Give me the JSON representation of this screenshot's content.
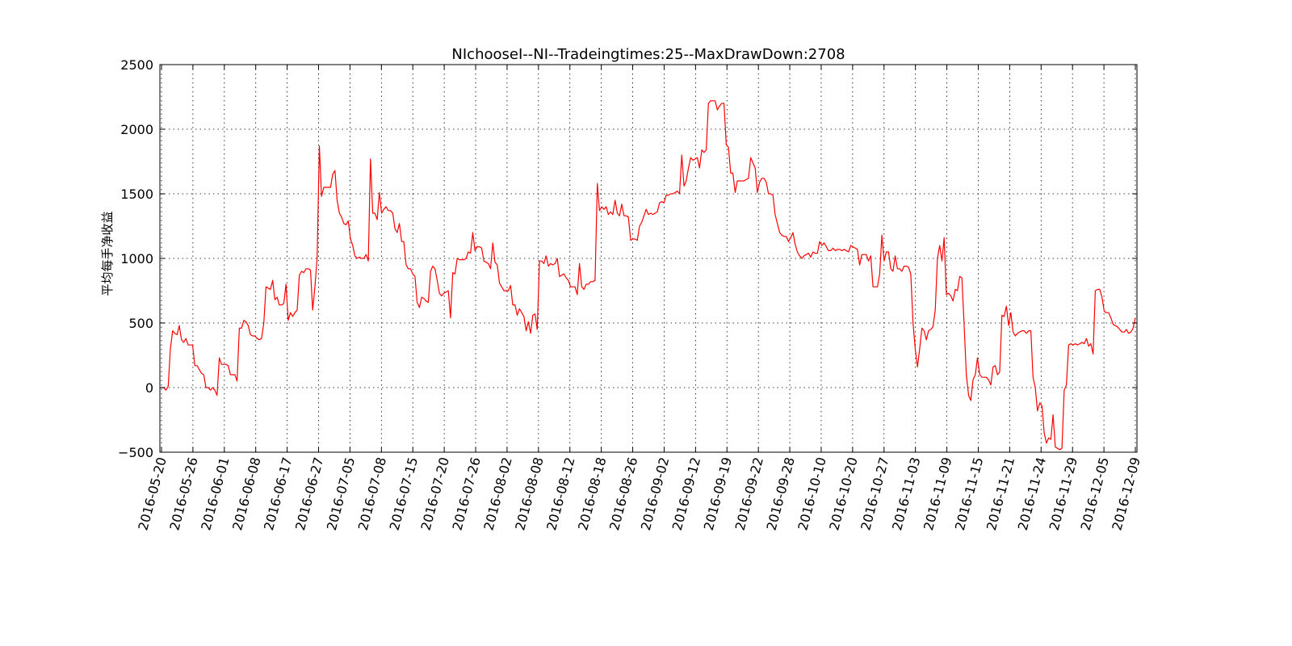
{
  "chart_data": {
    "type": "line",
    "title": "NIchooseI--NI--Tradeingtimes:25--MaxDrawDown:2708",
    "xlabel": "",
    "ylabel": "平均每手净收益",
    "ylim": [
      -500,
      2500
    ],
    "yticks": [
      -500,
      0,
      500,
      1000,
      1500,
      2000,
      2500
    ],
    "ytick_labels": [
      "−500",
      "0",
      "500",
      "1000",
      "1500",
      "2000",
      "2500"
    ],
    "xtick_labels": [
      "2016-05-20",
      "2016-05-26",
      "2016-06-01",
      "2016-06-08",
      "2016-06-17",
      "2016-06-27",
      "2016-07-05",
      "2016-07-08",
      "2016-07-15",
      "2016-07-20",
      "2016-07-26",
      "2016-08-02",
      "2016-08-08",
      "2016-08-12",
      "2016-08-18",
      "2016-08-26",
      "2016-09-02",
      "2016-09-12",
      "2016-09-19",
      "2016-09-22",
      "2016-09-28",
      "2016-10-10",
      "2016-10-20",
      "2016-10-27",
      "2016-11-03",
      "2016-11-09",
      "2016-11-15",
      "2016-11-21",
      "2016-11-24",
      "2016-11-29",
      "2016-12-05",
      "2016-12-09"
    ],
    "grid": true,
    "series": [
      {
        "color": "#ff0000",
        "y": [
          0,
          0,
          -20,
          10,
          300,
          440,
          420,
          410,
          480,
          370,
          350,
          380,
          330,
          330,
          330,
          170,
          170,
          140,
          110,
          100,
          0,
          0,
          -20,
          0,
          -20,
          -60,
          230,
          180,
          180,
          180,
          170,
          100,
          100,
          100,
          50,
          460,
          460,
          520,
          510,
          480,
          410,
          400,
          400,
          380,
          370,
          380,
          500,
          780,
          770,
          760,
          830,
          680,
          700,
          640,
          640,
          650,
          800,
          520,
          580,
          550,
          580,
          600,
          870,
          900,
          890,
          920,
          920,
          910,
          600,
          780,
          1000,
          1870,
          1480,
          1550,
          1550,
          1550,
          1550,
          1650,
          1680,
          1450,
          1350,
          1320,
          1270,
          1260,
          1290,
          1150,
          1100,
          1020,
          1000,
          1010,
          1000,
          1000,
          1030,
          980,
          1770,
          1350,
          1350,
          1300,
          1510,
          1350,
          1380,
          1400,
          1370,
          1370,
          1350,
          1230,
          1200,
          1270,
          1130,
          1130,
          950,
          920,
          920,
          880,
          860,
          660,
          620,
          700,
          690,
          670,
          660,
          900,
          940,
          920,
          830,
          730,
          710,
          730,
          740,
          750,
          540,
          890,
          880,
          1000,
          990,
          990,
          990,
          1000,
          1050,
          1040,
          1200,
          1060,
          1090,
          1090,
          1080,
          980,
          970,
          960,
          920,
          1120,
          970,
          950,
          810,
          780,
          750,
          750,
          750,
          790,
          640,
          640,
          560,
          610,
          580,
          550,
          440,
          510,
          420,
          560,
          570,
          450,
          980,
          980,
          960,
          1020,
          940,
          960,
          950,
          960,
          1000,
          860,
          870,
          880,
          850,
          830,
          780,
          780,
          780,
          720,
          960,
          780,
          760,
          800,
          800,
          820,
          820,
          830,
          1580,
          1370,
          1400,
          1380,
          1400,
          1340,
          1360,
          1340,
          1450,
          1350,
          1330,
          1420,
          1330,
          1330,
          1320,
          1140,
          1150,
          1150,
          1140,
          1250,
          1280,
          1330,
          1380,
          1340,
          1350,
          1340,
          1350,
          1360,
          1430,
          1440,
          1430,
          1490,
          1490,
          1500,
          1500,
          1510,
          1520,
          1500,
          1800,
          1560,
          1600,
          1700,
          1780,
          1760,
          1770,
          1780,
          1700,
          1840,
          1820,
          1840,
          2200,
          2220,
          2220,
          2220,
          2150,
          2180,
          2200,
          2200,
          1880,
          1860,
          1660,
          1660,
          1510,
          1600,
          1600,
          1600,
          1600,
          1610,
          1620,
          1780,
          1740,
          1700,
          1510,
          1590,
          1620,
          1620,
          1590,
          1500,
          1500,
          1490,
          1340,
          1270,
          1200,
          1180,
          1170,
          1170,
          1130,
          1160,
          1200,
          1110,
          1050,
          1020,
          1000,
          1020,
          1030,
          1040,
          1010,
          1050,
          1040,
          1040,
          1130,
          1100,
          1120,
          1090,
          1060,
          1060,
          1080,
          1060,
          1070,
          1070,
          1060,
          1070,
          1060,
          1050,
          1100,
          1090,
          1080,
          1070,
          950,
          1030,
          1030,
          1030,
          980,
          1020,
          780,
          780,
          780,
          880,
          1180,
          980,
          1050,
          1050,
          920,
          900,
          1020,
          920,
          920,
          900,
          940,
          940,
          930,
          880,
          500,
          300,
          160,
          300,
          460,
          440,
          370,
          440,
          450,
          470,
          600,
          1000,
          1100,
          980,
          1160,
          720,
          730,
          710,
          670,
          760,
          750,
          860,
          850,
          480,
          100,
          -60,
          -100,
          60,
          100,
          230,
          100,
          80,
          80,
          80,
          60,
          20,
          160,
          170,
          100,
          120,
          560,
          550,
          630,
          480,
          580,
          430,
          400,
          420,
          430,
          440,
          440,
          420,
          440,
          440,
          80,
          0,
          -180,
          -120,
          -140,
          -350,
          -430,
          -390,
          -400,
          -210,
          -460,
          -470,
          -480,
          -470,
          -20,
          20,
          330,
          340,
          330,
          340,
          330,
          340,
          350,
          340,
          380,
          320,
          340,
          260,
          750,
          760,
          760,
          700,
          590,
          580,
          580,
          540,
          490,
          480,
          470,
          450,
          430,
          430,
          450,
          420,
          430,
          460,
          540
        ]
      }
    ]
  }
}
